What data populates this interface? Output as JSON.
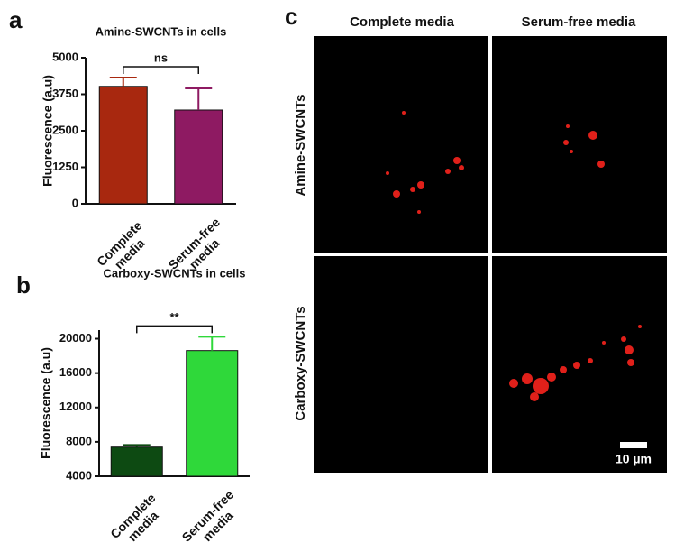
{
  "chart_data": [
    {
      "type": "bar",
      "title": "Amine-SWCNTs in cells",
      "ylabel": "Fluorescence  (a.u)",
      "categories": [
        "Complete media",
        "Serum-free media"
      ],
      "values": [
        4020,
        3210
      ],
      "errors": [
        300,
        740
      ],
      "colors": [
        "#a8280f",
        "#8e1a62"
      ],
      "ylim": [
        0,
        5000
      ],
      "yticks": [
        0,
        1250,
        2500,
        3750,
        5000
      ],
      "annotation": "ns"
    },
    {
      "type": "bar",
      "title": "Carboxy-SWCNTs in cells",
      "ylabel": "Fluorescence  (a.u)",
      "categories": [
        "Complete media",
        "Serum-free media"
      ],
      "values": [
        7390,
        18620
      ],
      "errors": [
        250,
        1600
      ],
      "colors": [
        "#0d4a12",
        "#2fd83a"
      ],
      "ylim": [
        4000,
        21000
      ],
      "yticks": [
        4000,
        8000,
        12000,
        16000,
        20000
      ],
      "annotation": "**"
    }
  ],
  "panel_labels": [
    "a",
    "b",
    "c"
  ],
  "micrographs": {
    "columns": [
      "Complete media",
      "Serum-free media"
    ],
    "rows": [
      "Amine-SWCNTs",
      "Carboxy-SWCNTs"
    ],
    "scale_bar": "10 µm"
  }
}
